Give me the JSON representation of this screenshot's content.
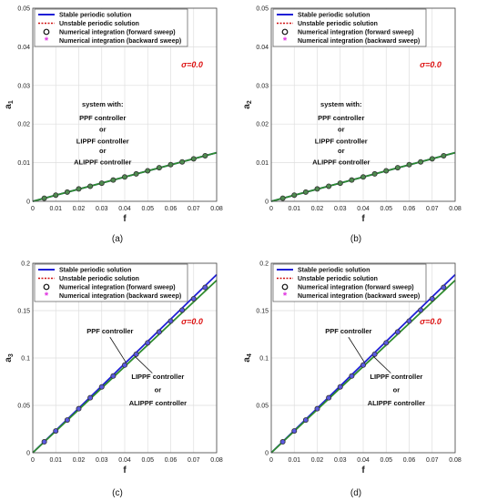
{
  "panels": [
    {
      "caption": "(a)",
      "sigma_label": "σ=0.0",
      "ylabel_main": "a",
      "ylabel_sub": "1",
      "xlabel": "f"
    },
    {
      "caption": "(b)",
      "sigma_label": "σ=0.0",
      "ylabel_main": "a",
      "ylabel_sub": "2",
      "xlabel": "f"
    },
    {
      "caption": "(c)",
      "sigma_label": "σ=0.0",
      "ylabel_main": "a",
      "ylabel_sub": "3",
      "xlabel": "f"
    },
    {
      "caption": "(d)",
      "sigma_label": "σ=0.0",
      "ylabel_main": "a",
      "ylabel_sub": "4",
      "xlabel": "f"
    }
  ],
  "legend": {
    "stable": "Stable periodic solution",
    "unstable": "Unstable periodic solution",
    "forward": "Numerical integration (forward sweep)",
    "backward": "Numerical integration (backward sweep)"
  },
  "colors": {
    "stable": "#1f1fd6",
    "unstable": "#d01010",
    "green": "#2e8b2e",
    "forward_marker": "#111111",
    "backward_marker": "#e033e0",
    "sigma": "#dd1111"
  },
  "chart_data": [
    {
      "type": "line",
      "xlabel": "f",
      "ylabel": "a1",
      "xlim": [
        0,
        0.08
      ],
      "ylim": [
        0,
        0.05
      ],
      "xticks": [
        0,
        0.01,
        0.02,
        0.03,
        0.04,
        0.05,
        0.06,
        0.07,
        0.08
      ],
      "yticks": [
        0,
        0.01,
        0.02,
        0.03,
        0.04,
        0.05
      ],
      "xtick_labels": [
        "0",
        "0.01",
        "0.02",
        "0.03",
        "0.04",
        "0.05",
        "0.06",
        "0.07",
        "0.08"
      ],
      "ytick_labels": [
        "0",
        "0.01",
        "0.02",
        "0.03",
        "0.04",
        "0.05"
      ],
      "grid": true,
      "legend_position": "top",
      "annotations": [
        "system with:",
        "PPF controller",
        "or",
        "LIPPF controller",
        "or",
        "ALIPPF controller"
      ],
      "series": [
        {
          "name": "Stable periodic solution",
          "kind": "line",
          "color": "#1f1fd6",
          "x": [
            0,
            0.08
          ],
          "y": [
            0,
            0.0126
          ]
        },
        {
          "kind": "line",
          "color": "#2e8b2e",
          "x": [
            0,
            0.08
          ],
          "y": [
            0,
            0.0126
          ]
        },
        {
          "name": "Numerical integration (forward sweep)",
          "kind": "markers",
          "x": [
            0.005,
            0.01,
            0.015,
            0.02,
            0.025,
            0.03,
            0.035,
            0.04,
            0.045,
            0.05,
            0.055,
            0.06,
            0.065,
            0.07,
            0.075
          ],
          "y": [
            0.0008,
            0.0016,
            0.0024,
            0.0032,
            0.0039,
            0.0047,
            0.0055,
            0.0063,
            0.0071,
            0.0079,
            0.0087,
            0.0095,
            0.0102,
            0.011,
            0.0118
          ]
        }
      ]
    },
    {
      "type": "line",
      "xlabel": "f",
      "ylabel": "a2",
      "xlim": [
        0,
        0.08
      ],
      "ylim": [
        0,
        0.05
      ],
      "xticks": [
        0,
        0.01,
        0.02,
        0.03,
        0.04,
        0.05,
        0.06,
        0.07,
        0.08
      ],
      "yticks": [
        0,
        0.01,
        0.02,
        0.03,
        0.04,
        0.05
      ],
      "xtick_labels": [
        "0",
        "0.01",
        "0.02",
        "0.03",
        "0.04",
        "0.05",
        "0.06",
        "0.07",
        "0.08"
      ],
      "ytick_labels": [
        "0",
        "0.01",
        "0.02",
        "0.03",
        "0.04",
        "0.05"
      ],
      "grid": true,
      "legend_position": "top",
      "annotations": [
        "system with:",
        "PPF controller",
        "or",
        "LIPPF controller",
        "or",
        "ALIPPF controller"
      ],
      "series": [
        {
          "name": "Stable periodic solution",
          "kind": "line",
          "color": "#1f1fd6",
          "x": [
            0,
            0.08
          ],
          "y": [
            0,
            0.0126
          ]
        },
        {
          "kind": "line",
          "color": "#2e8b2e",
          "x": [
            0,
            0.08
          ],
          "y": [
            0,
            0.0126
          ]
        },
        {
          "name": "Numerical integration (forward sweep)",
          "kind": "markers",
          "x": [
            0.005,
            0.01,
            0.015,
            0.02,
            0.025,
            0.03,
            0.035,
            0.04,
            0.045,
            0.05,
            0.055,
            0.06,
            0.065,
            0.07,
            0.075
          ],
          "y": [
            0.0008,
            0.0016,
            0.0024,
            0.0032,
            0.0039,
            0.0047,
            0.0055,
            0.0063,
            0.0071,
            0.0079,
            0.0087,
            0.0095,
            0.0102,
            0.011,
            0.0118
          ]
        }
      ]
    },
    {
      "type": "line",
      "xlabel": "f",
      "ylabel": "a3",
      "xlim": [
        0,
        0.08
      ],
      "ylim": [
        0,
        0.2
      ],
      "xticks": [
        0,
        0.01,
        0.02,
        0.03,
        0.04,
        0.05,
        0.06,
        0.07,
        0.08
      ],
      "yticks": [
        0,
        0.05,
        0.1,
        0.15,
        0.2
      ],
      "xtick_labels": [
        "0",
        "0.01",
        "0.02",
        "0.03",
        "0.04",
        "0.05",
        "0.06",
        "0.07",
        "0.08"
      ],
      "ytick_labels": [
        "0",
        "0.05",
        "0.1",
        "0.15",
        "0.2"
      ],
      "grid": true,
      "legend_position": "top",
      "annotations": [
        "PPF controller",
        "LIPPF controller",
        "or",
        "ALIPPF controller"
      ],
      "series": [
        {
          "name": "Stable periodic solution",
          "kind": "line",
          "color": "#1f1fd6",
          "x": [
            0,
            0.08
          ],
          "y": [
            0,
            0.188
          ]
        },
        {
          "kind": "line",
          "color": "#2e8b2e",
          "x": [
            0,
            0.08
          ],
          "y": [
            0,
            0.182
          ]
        },
        {
          "name": "Numerical integration (forward sweep)",
          "kind": "markers",
          "x": [
            0.005,
            0.01,
            0.015,
            0.02,
            0.025,
            0.03,
            0.035,
            0.04,
            0.045,
            0.05,
            0.055,
            0.06,
            0.065,
            0.07,
            0.075
          ],
          "y": [
            0.0115,
            0.023,
            0.0345,
            0.0465,
            0.058,
            0.0695,
            0.081,
            0.0925,
            0.104,
            0.116,
            0.1275,
            0.139,
            0.1505,
            0.1625,
            0.1745
          ]
        }
      ]
    },
    {
      "type": "line",
      "xlabel": "f",
      "ylabel": "a4",
      "xlim": [
        0,
        0.08
      ],
      "ylim": [
        0,
        0.2
      ],
      "xticks": [
        0,
        0.01,
        0.02,
        0.03,
        0.04,
        0.05,
        0.06,
        0.07,
        0.08
      ],
      "yticks": [
        0,
        0.05,
        0.1,
        0.15,
        0.2
      ],
      "xtick_labels": [
        "0",
        "0.01",
        "0.02",
        "0.03",
        "0.04",
        "0.05",
        "0.06",
        "0.07",
        "0.08"
      ],
      "ytick_labels": [
        "0",
        "0.05",
        "0.1",
        "0.15",
        "0.2"
      ],
      "grid": true,
      "legend_position": "top",
      "annotations": [
        "PPF controller",
        "LIPPF controller",
        "or",
        "ALIPPF controller"
      ],
      "series": [
        {
          "name": "Stable periodic solution",
          "kind": "line",
          "color": "#1f1fd6",
          "x": [
            0,
            0.08
          ],
          "y": [
            0,
            0.188
          ]
        },
        {
          "kind": "line",
          "color": "#2e8b2e",
          "x": [
            0,
            0.08
          ],
          "y": [
            0,
            0.182
          ]
        },
        {
          "name": "Numerical integration (forward sweep)",
          "kind": "markers",
          "x": [
            0.005,
            0.01,
            0.015,
            0.02,
            0.025,
            0.03,
            0.035,
            0.04,
            0.045,
            0.05,
            0.055,
            0.06,
            0.065,
            0.07,
            0.075
          ],
          "y": [
            0.0115,
            0.023,
            0.0345,
            0.0465,
            0.058,
            0.0695,
            0.081,
            0.0925,
            0.104,
            0.116,
            0.1275,
            0.139,
            0.1505,
            0.1625,
            0.1745
          ]
        }
      ]
    }
  ]
}
